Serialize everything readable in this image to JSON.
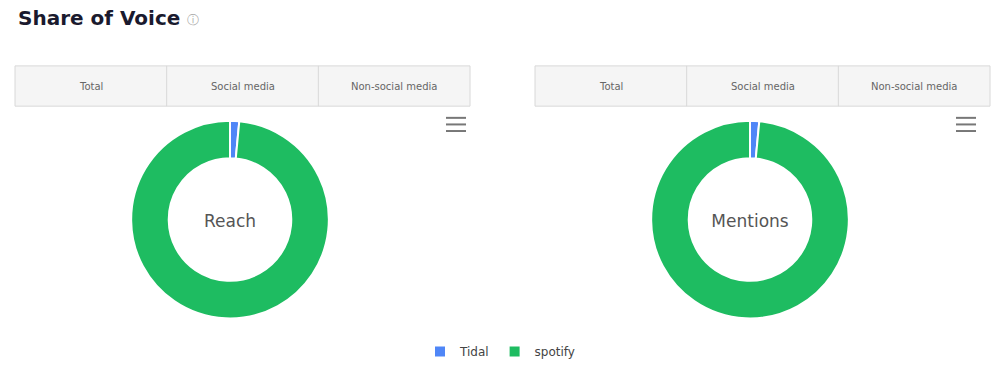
{
  "chart_data": [
    {
      "type": "pie",
      "title": "Share of Voice",
      "annotations": [
        "Reach",
        "Total",
        "Social media",
        "Non-social media",
        "ⓘ"
      ],
      "categories": [
        "Tidal",
        "spotify"
      ],
      "values": [
        1.5,
        98.5
      ],
      "colors": [
        "#4f86f7",
        "#1ebc61"
      ],
      "legend": "bottom"
    },
    {
      "type": "pie",
      "annotations": [
        "Mentions",
        "Total",
        "Social media",
        "Non-social media"
      ],
      "categories": [
        "Tidal",
        "spotify"
      ],
      "values": [
        1.5,
        98.5
      ],
      "colors": [
        "#4f86f7",
        "#1ebc61"
      ]
    }
  ]
}
